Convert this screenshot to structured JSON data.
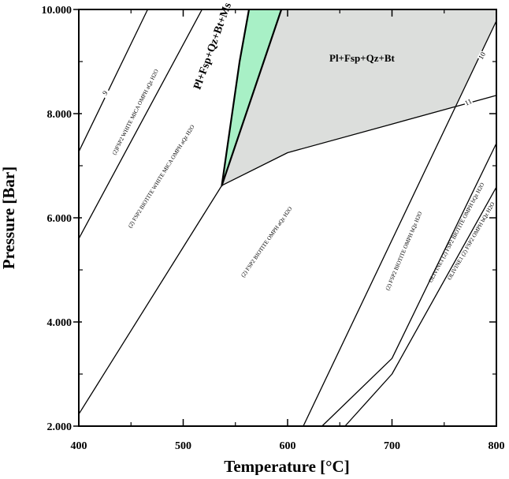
{
  "chart_data": {
    "type": "phase-diagram",
    "xlabel": "Temperature [°C]",
    "ylabel": "Pressure [Bar]",
    "xlim": [
      400,
      800
    ],
    "ylim": [
      2000,
      10000
    ],
    "x_ticks": [
      400,
      500,
      600,
      700,
      800
    ],
    "x_tick_labels": [
      "400",
      "500",
      "600",
      "700",
      "800"
    ],
    "y_ticks": [
      2000,
      4000,
      6000,
      8000,
      10000
    ],
    "y_tick_labels": [
      "2.000",
      "4.000",
      "6.000",
      "8.000",
      "10.000"
    ],
    "grid": false,
    "regions": [
      {
        "label": "Pl+Fsp+Qz+Bt+Ms",
        "color": "#a8f0c6",
        "label_at": [
          516,
          8450
        ],
        "label_angle": -70,
        "polygon": [
          [
            537,
            6620
          ],
          [
            554,
            9000
          ],
          [
            563,
            10000
          ],
          [
            594,
            10000
          ],
          [
            537,
            6620
          ]
        ]
      },
      {
        "label": "Pl+Fsp+Qz+Bt",
        "color": "#dcdedc",
        "label_at": [
          640,
          9000
        ],
        "label_angle": 0,
        "polygon": [
          [
            537,
            6620
          ],
          [
            594,
            10000
          ],
          [
            800,
            10000
          ],
          [
            800,
            9780
          ],
          [
            760,
            8130
          ],
          [
            700,
            7800
          ],
          [
            600,
            7250
          ],
          [
            537,
            6620
          ]
        ]
      }
    ],
    "boundaries": [
      {
        "points": [
          [
            400,
            7270
          ],
          [
            466,
            10000
          ]
        ]
      },
      {
        "points": [
          [
            400,
            5600
          ],
          [
            518,
            10000
          ]
        ]
      },
      {
        "points": [
          [
            400,
            2230
          ],
          [
            537,
            6620
          ]
        ]
      },
      {
        "points": [
          [
            537,
            6620
          ],
          [
            594,
            10000
          ]
        ]
      },
      {
        "points": [
          [
            537,
            6620
          ],
          [
            554,
            9000
          ],
          [
            563,
            10000
          ]
        ]
      },
      {
        "points": [
          [
            537,
            6620
          ],
          [
            600,
            7250
          ],
          [
            700,
            7800
          ],
          [
            760,
            8130
          ],
          [
            800,
            8350
          ]
        ]
      },
      {
        "points": [
          [
            594,
            10000
          ],
          [
            800,
            10000
          ]
        ]
      },
      {
        "points": [
          [
            615,
            2000
          ],
          [
            800,
            9780
          ]
        ]
      },
      {
        "points": [
          [
            633,
            2000
          ],
          [
            700,
            3300
          ],
          [
            800,
            7430
          ]
        ]
      },
      {
        "points": [
          [
            655,
            2000
          ],
          [
            700,
            3000
          ],
          [
            800,
            6590
          ]
        ]
      }
    ],
    "field_labels": [
      {
        "text": "(2)FSP2 WHITE MICA OMPH aQz H2O",
        "at": [
          435,
          7200
        ],
        "angle": -63
      },
      {
        "text": "(2) FSP2 BIOTITE WHITE MICA OMPH aQz H2O",
        "at": [
          450,
          5800
        ],
        "angle": -58
      },
      {
        "text": "(2) FSP2 BIOTITE OMPH aQz H2O",
        "at": [
          558,
          4850
        ],
        "angle": -55
      },
      {
        "text": "(2) FSP2 BIOTITE OMPH bQz H2O",
        "at": [
          697,
          4600
        ],
        "angle": -67
      },
      {
        "text": "OLIVINE1 (2) FSP2 BIOTITE OMPH bQz H2O",
        "at": [
          738,
          4750
        ],
        "angle": -62
      },
      {
        "text": "OLIVINE1 (2) FSP2 OMPH bQz H2O",
        "at": [
          756,
          4800
        ],
        "angle": -60
      }
    ],
    "isopleth_labels": [
      {
        "text": "9",
        "at": [
          427,
          8370
        ],
        "angle": -55
      },
      {
        "text": "10",
        "at": [
          788,
          9090
        ],
        "angle": -60
      },
      {
        "text": "11",
        "at": [
          774,
          8180
        ],
        "angle": -25
      }
    ]
  }
}
